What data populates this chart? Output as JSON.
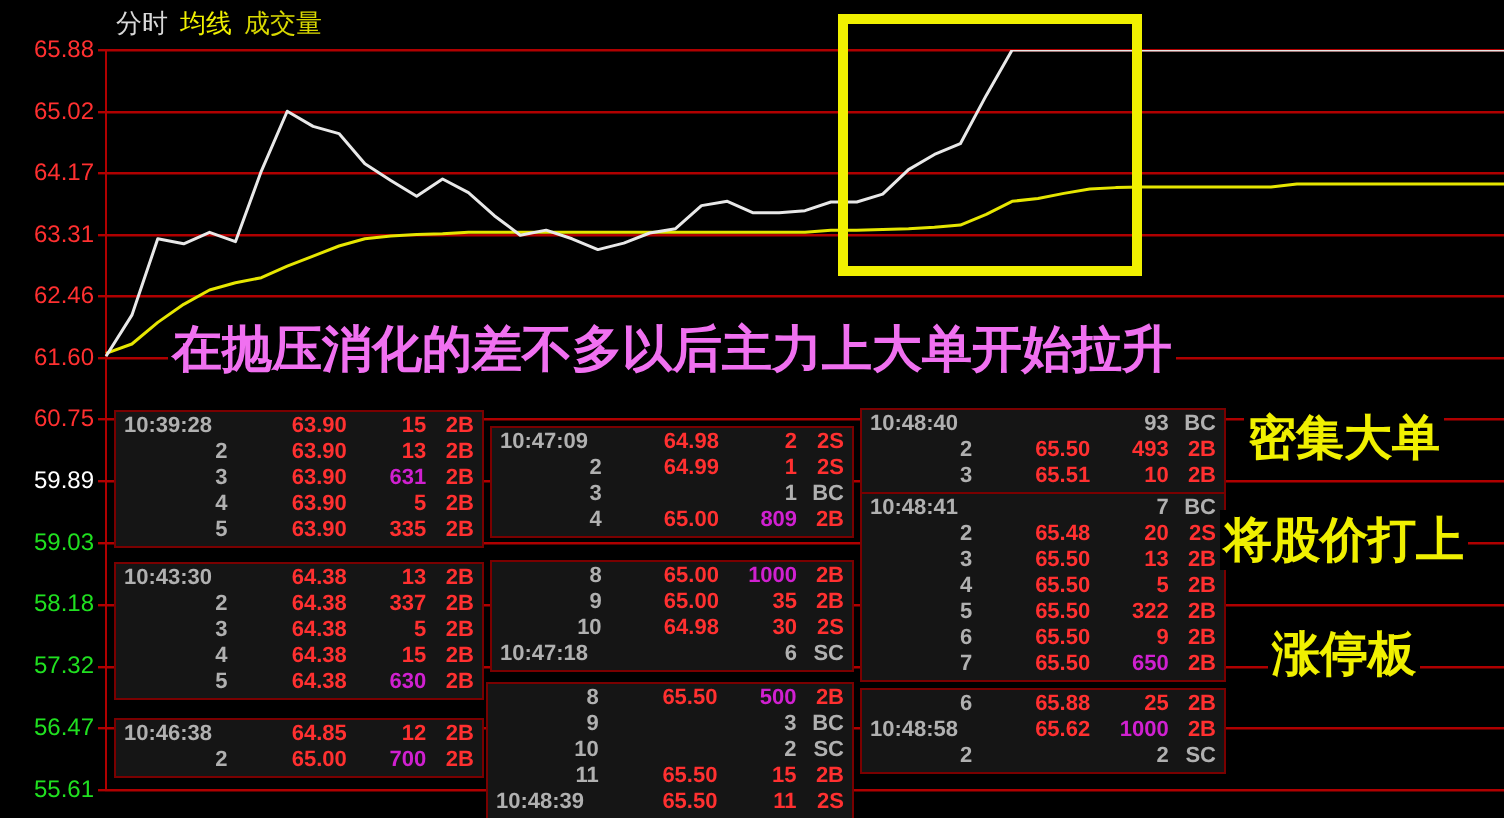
{
  "chart_data": {
    "type": "line",
    "categories": [
      null,
      null,
      null,
      null,
      null,
      null,
      null,
      null,
      null,
      null,
      null,
      null,
      null,
      null,
      null,
      null,
      null,
      null,
      null,
      null,
      null,
      null,
      null,
      null,
      null,
      null,
      null,
      null,
      null,
      null,
      null,
      null,
      null,
      null,
      null,
      null,
      null,
      null,
      null,
      null,
      null,
      null,
      null,
      null,
      null,
      null,
      null,
      null,
      null,
      null,
      null,
      null,
      null,
      null,
      null
    ],
    "series": [
      {
        "color": "#e8e8e8",
        "values": [
          61.63,
          62.2,
          63.26,
          63.19,
          63.35,
          63.22,
          64.2,
          65.03,
          64.82,
          64.72,
          64.3,
          64.07,
          63.85,
          64.09,
          63.9,
          63.58,
          63.31,
          63.38,
          63.26,
          63.11,
          63.2,
          63.34,
          63.4,
          63.72,
          63.78,
          63.62,
          63.62,
          63.65,
          63.77,
          63.77,
          63.88,
          64.22,
          64.43,
          64.58,
          65.25,
          65.88,
          65.88,
          65.88,
          65.88,
          65.88,
          65.88,
          65.88,
          65.88,
          65.88,
          65.88,
          65.88,
          65.88,
          65.88,
          65.88,
          65.88,
          65.88,
          65.88,
          65.88,
          65.88,
          65.88
        ]
      },
      {
        "color": "#e6e600",
        "values": [
          61.67,
          61.8,
          62.1,
          62.35,
          62.55,
          62.65,
          62.72,
          62.88,
          63.02,
          63.16,
          63.26,
          63.3,
          63.32,
          63.33,
          63.35,
          63.35,
          63.35,
          63.35,
          63.35,
          63.35,
          63.35,
          63.35,
          63.35,
          63.35,
          63.35,
          63.35,
          63.35,
          63.35,
          63.38,
          63.38,
          63.39,
          63.4,
          63.42,
          63.45,
          63.6,
          63.78,
          63.82,
          63.89,
          63.95,
          63.97,
          63.98,
          63.98,
          63.98,
          63.98,
          63.98,
          63.98,
          64.02,
          64.02,
          64.02,
          64.02,
          64.02,
          64.02,
          64.02,
          64.02,
          64.02
        ]
      }
    ],
    "ylim": [
      55.61,
      65.88
    ],
    "yticks": [
      55.61,
      56.47,
      57.32,
      58.18,
      59.03,
      59.89,
      60.75,
      {
        "value": 61.6,
        "label": "61.60"
      },
      62.46,
      63.31,
      64.17,
      65.02,
      65.88
    ],
    "grid": "y",
    "tick_labels": "y",
    "annotations": [
      "分时",
      "均线",
      "成交量",
      "在抛压消化的差不多以后主力上大单开始拉升",
      "密集大单",
      "将股价打上",
      "涨停板",
      "10:39:28\t63.90\t15\t2B",
      "2\t63.90\t13\t2B",
      "3\t63.90\t631\t2B",
      "4\t63.90\t5\t2B",
      "5\t63.90\t335\t2B",
      "10:43:30\t64.38\t13\t2B",
      "2\t64.38\t337\t2B",
      "3\t64.38\t5\t2B",
      "4\t64.38\t15\t2B",
      "5\t64.38\t630\t2B",
      "10:46:38\t64.85\t12\t2B",
      "2\t65.00\t700\t2B",
      "10:47:09\t64.98\t2\t2S",
      "2\t64.99\t1\t2S",
      "3\t\t1\tBC",
      "4\t65.00\t809\t2B",
      "8\t65.00\t1000\t2B",
      "9\t65.00\t35\t2B",
      "10\t64.98\t30\t2S",
      "10:47:18\t\t6\tSC",
      "8\t65.50\t500\t2B",
      "9\t\t3\tBC",
      "10\t\t2\tSC",
      "11\t65.50\t15\t2B",
      "10:48:39\t65.50\t11\t2S",
      "10:48:40\t\t93\tBC",
      "2\t65.50\t493\t2B",
      "3\t65.51\t10\t2B",
      "10:48:41\t\t7\tBC",
      "2\t65.48\t20\t2S",
      "3\t65.50\t13\t2B",
      "4\t65.50\t5\t2B",
      "5\t65.50\t322\t2B",
      "6\t65.50\t9\t2B",
      "7\t65.50\t650\t2B",
      "6\t65.88\t25\t2B",
      "10:48:58\t65.62\t1000\t2B",
      "2\t\t2\tSC"
    ]
  }
}
